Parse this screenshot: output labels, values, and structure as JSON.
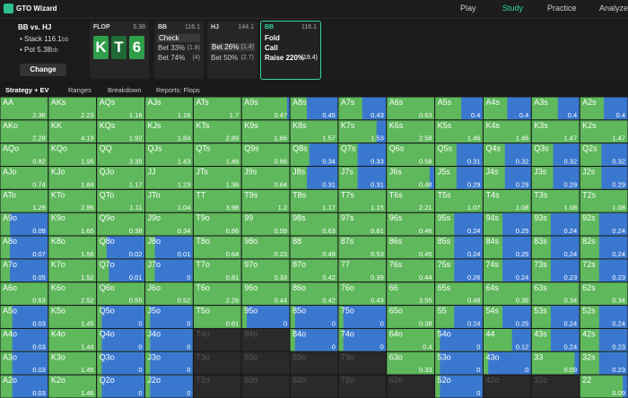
{
  "nav": {
    "brand": "GTO Wizard",
    "items": [
      "Play",
      "Study",
      "Practice",
      "Analyze"
    ]
  },
  "spot": {
    "title": "BB vs. HJ",
    "stack_label": "Stack",
    "stack": "116.1",
    "stack_unit": "bb",
    "pot_label": "Pot",
    "pot": "5.38",
    "pot_unit": "bb",
    "button": "Change"
  },
  "board": {
    "label": "FLOP",
    "pot": "5.38",
    "cards": [
      "K",
      "T",
      "6"
    ]
  },
  "actions": [
    {
      "player": "BB",
      "stack": "116.1",
      "options": [
        {
          "name": "Check"
        },
        {
          "name": "Bet 33%",
          "size": "(1.8)"
        },
        {
          "name": "Bet 74%",
          "size": "(4)"
        }
      ]
    },
    {
      "player": "HJ",
      "stack": "144.1",
      "options": [
        {
          "name": "Bet 26%",
          "size": "(1.4)"
        },
        {
          "name": "Bet 50%",
          "size": "(2.7)"
        }
      ]
    },
    {
      "player": "BB",
      "stack": "116.1",
      "options": [
        {
          "name": "Fold"
        },
        {
          "name": "Call"
        },
        {
          "name": "Raise 220%",
          "size": "(19.4)"
        }
      ]
    }
  ],
  "tabs": [
    "Strategy + EV",
    "Ranges",
    "Breakdown",
    "Reports: Flops"
  ],
  "grid": {
    "hands": [
      [
        "AA",
        "AKs",
        "AQs",
        "AJs",
        "ATs",
        "A9s",
        "A8s",
        "A7s",
        "A6s",
        "A5s",
        "A4s",
        "A3s",
        "A2s"
      ],
      [
        "AKo",
        "KK",
        "KQs",
        "KJs",
        "KTs",
        "K9s",
        "K8s",
        "K7s",
        "K6s",
        "K5s",
        "K4s",
        "K3s",
        "K2s"
      ],
      [
        "AQo",
        "KQo",
        "QQ",
        "QJs",
        "QTs",
        "Q9s",
        "Q8s",
        "Q7s",
        "Q6s",
        "Q5s",
        "Q4s",
        "Q3s",
        "Q2s"
      ],
      [
        "AJo",
        "KJo",
        "QJo",
        "JJ",
        "JTs",
        "J9s",
        "J8s",
        "J7s",
        "J6s",
        "J5s",
        "J4s",
        "J3s",
        "J2s"
      ],
      [
        "ATo",
        "KTo",
        "QTo",
        "JTo",
        "TT",
        "T9s",
        "T8s",
        "T7s",
        "T6s",
        "T5s",
        "T4s",
        "T3s",
        "T2s"
      ],
      [
        "A9o",
        "K9o",
        "Q9o",
        "J9o",
        "T9o",
        "99",
        "98s",
        "97s",
        "96s",
        "95s",
        "94s",
        "93s",
        "92s"
      ],
      [
        "A8o",
        "K8o",
        "Q8o",
        "J8o",
        "T8o",
        "98o",
        "88",
        "87s",
        "86s",
        "85s",
        "84s",
        "83s",
        "82s"
      ],
      [
        "A7o",
        "K7o",
        "Q7o",
        "J7o",
        "T7o",
        "97o",
        "87o",
        "77",
        "76s",
        "75s",
        "74s",
        "73s",
        "72s"
      ],
      [
        "A6o",
        "K6o",
        "Q6o",
        "J6o",
        "T6o",
        "96o",
        "86o",
        "76o",
        "66",
        "65s",
        "64s",
        "63s",
        "62s"
      ],
      [
        "A5o",
        "K5o",
        "Q5o",
        "J5o",
        "T5o",
        "95o",
        "85o",
        "75o",
        "65o",
        "55",
        "54s",
        "53s",
        "52s"
      ],
      [
        "A4o",
        "K4o",
        "Q4o",
        "J4o",
        "T4o",
        "94o",
        "84o",
        "74o",
        "64o",
        "54o",
        "44",
        "43s",
        "42s"
      ],
      [
        "A3o",
        "K3o",
        "Q3o",
        "J3o",
        "T3o",
        "93o",
        "83o",
        "73o",
        "63o",
        "53o",
        "43o",
        "33",
        "32s"
      ],
      [
        "A2o",
        "K2o",
        "Q2o",
        "J2o",
        "T2o",
        "92o",
        "82o",
        "72o",
        "62o",
        "52o",
        "42o",
        "32o",
        "22"
      ]
    ],
    "ev": [
      [
        2.36,
        2.23,
        1.16,
        1.16,
        1.7,
        0.47,
        0.45,
        0.43,
        0.63,
        0.4,
        0.4,
        0.4,
        0.4
      ],
      [
        2.28,
        4.19,
        1.92,
        1.84,
        2.89,
        1.66,
        1.57,
        1.53,
        2.58,
        1.46,
        1.46,
        1.47,
        1.47
      ],
      [
        0.82,
        1.95,
        3.35,
        1.43,
        1.46,
        0.66,
        0.34,
        0.33,
        0.58,
        0.31,
        0.32,
        0.32,
        0.32
      ],
      [
        0.74,
        1.84,
        1.17,
        1.23,
        1.36,
        0.64,
        0.31,
        0.31,
        0.48,
        0.29,
        0.29,
        0.29,
        0.29
      ],
      [
        1.29,
        2.96,
        1.11,
        1.04,
        3.98,
        1.2,
        1.17,
        1.15,
        2.21,
        1.07,
        1.08,
        1.08,
        1.08
      ],
      [
        0.09,
        1.65,
        0.38,
        0.34,
        0.86,
        0.59,
        0.63,
        0.61,
        0.46,
        0.24,
        0.25,
        0.24,
        0.24
      ],
      [
        0.07,
        1.56,
        0.02,
        0.01,
        0.64,
        0.23,
        0.49,
        0.53,
        0.45,
        0.24,
        0.25,
        0.24,
        0.24
      ],
      [
        0.05,
        1.52,
        0.01,
        0,
        0.81,
        0.33,
        0.42,
        0.39,
        0.44,
        0.26,
        0.24,
        0.23,
        0.23
      ],
      [
        0.63,
        2.52,
        0.55,
        0.52,
        2.26,
        0.44,
        0.42,
        0.43,
        3.55,
        0.48,
        0.35,
        0.34,
        0.34
      ],
      [
        0.03,
        1.45,
        0,
        0,
        0.81,
        0,
        0,
        0,
        0.38,
        0.24,
        0.25,
        0.24,
        0.24
      ],
      [
        0.03,
        1.44,
        0,
        0,
        null,
        null,
        0,
        0,
        0.4,
        0,
        0.12,
        0.24,
        0.23
      ],
      [
        0.03,
        1.45,
        0,
        0,
        null,
        null,
        null,
        null,
        0.33,
        0,
        0,
        0.09,
        0.23
      ],
      [
        0.03,
        1.46,
        0,
        0,
        null,
        null,
        null,
        null,
        null,
        0,
        null,
        null,
        0.09
      ]
    ],
    "bet_freq": [
      [
        0,
        0,
        0,
        0,
        0,
        0.05,
        0.65,
        0.5,
        0,
        0.45,
        0.5,
        0.45,
        0.5
      ],
      [
        0,
        0,
        0,
        0,
        0,
        0,
        0,
        0.2,
        0,
        0,
        0,
        0,
        0
      ],
      [
        0,
        0,
        0,
        0,
        0,
        0,
        0.6,
        0.6,
        0,
        0.55,
        0.55,
        0.55,
        0.55
      ],
      [
        0,
        0,
        0,
        0,
        0,
        0,
        0.65,
        0.6,
        0.1,
        0.55,
        0.55,
        0.55,
        0.55
      ],
      [
        0,
        0,
        0,
        0,
        0,
        0,
        0,
        0,
        0,
        0,
        0,
        0,
        0
      ],
      [
        0.8,
        0,
        0,
        0,
        0,
        0,
        0,
        0,
        0,
        0.6,
        0.6,
        0.6,
        0.6
      ],
      [
        0.8,
        0,
        0.8,
        0.8,
        0,
        0,
        0,
        0,
        0,
        0.6,
        0.6,
        0.6,
        0.6
      ],
      [
        0.8,
        0,
        0.75,
        0.8,
        0,
        0,
        0,
        0,
        0,
        0.6,
        0.6,
        0.6,
        0.6
      ],
      [
        0,
        0,
        0,
        0,
        0,
        0,
        0,
        0,
        0,
        0,
        0,
        0,
        0
      ],
      [
        0.75,
        0,
        0.9,
        0.9,
        0,
        0.9,
        0.9,
        0.9,
        0,
        0.6,
        0.6,
        0.6,
        0.6
      ],
      [
        0.75,
        0,
        0.9,
        0.9,
        null,
        null,
        0.9,
        0.9,
        0,
        0.9,
        0.4,
        0.6,
        0.6
      ],
      [
        0.75,
        0,
        0.9,
        0.9,
        null,
        null,
        null,
        null,
        0,
        0.9,
        0.9,
        0.1,
        0.6
      ],
      [
        0.75,
        0,
        0.9,
        0.9,
        null,
        null,
        null,
        null,
        null,
        0.9,
        null,
        null,
        0.1
      ]
    ]
  }
}
